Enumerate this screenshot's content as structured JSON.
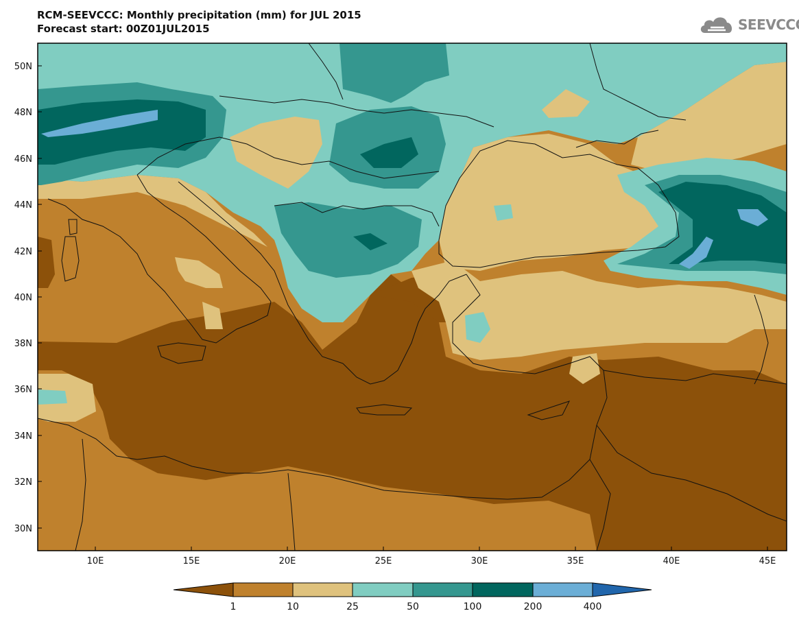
{
  "header": {
    "title": "RCM-SEEVCCC: Monthly precipitation (mm) for JUL 2015",
    "subtitle": "Forecast start: 00Z01JUL2015"
  },
  "logo": {
    "text": "SEEVCCC",
    "icon": "cloud-icon"
  },
  "map": {
    "lon_ticks": [
      "10E",
      "15E",
      "20E",
      "25E",
      "30E",
      "35E",
      "40E",
      "45E"
    ],
    "lat_ticks": [
      "50N",
      "48N",
      "46N",
      "44N",
      "42N",
      "40N",
      "38N",
      "36N",
      "34N",
      "32N",
      "30N"
    ],
    "lon_range": [
      7,
      46
    ],
    "lat_range": [
      29,
      51
    ]
  },
  "colorbar": {
    "boundaries": [
      "1",
      "10",
      "25",
      "50",
      "100",
      "200",
      "400"
    ],
    "colors": [
      "#8c510a",
      "#bf812d",
      "#dfc27d",
      "#80cdc1",
      "#35978f",
      "#01665e",
      "#6baed6",
      "#2166ac"
    ]
  }
}
